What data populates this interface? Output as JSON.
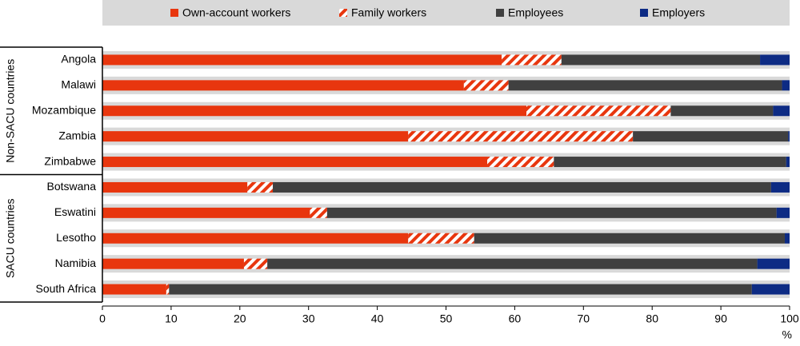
{
  "chart_data": {
    "type": "stacked-bar-horizontal",
    "groups": [
      {
        "name": "Non-SACU countries",
        "categories": [
          "Angola",
          "Malawi",
          "Mozambique",
          "Zambia",
          "Zimbabwe"
        ]
      },
      {
        "name": "SACU countries",
        "categories": [
          "Botswana",
          "Eswatini",
          "Lesotho",
          "Namibia",
          "South Africa"
        ]
      }
    ],
    "series": [
      {
        "name": "Own-account workers",
        "color": "#e8360e",
        "values": [
          58.1,
          52.6,
          61.7,
          44.5,
          56.0,
          21.1,
          30.2,
          44.5,
          20.6,
          9.3
        ]
      },
      {
        "name": "Family workers",
        "color": "#e8360e",
        "hatch": true,
        "values": [
          8.7,
          6.5,
          21.0,
          32.7,
          9.7,
          3.7,
          2.5,
          9.6,
          3.4,
          0.4
        ]
      },
      {
        "name": "Employees",
        "color": "#404040",
        "values": [
          28.9,
          39.8,
          14.9,
          22.6,
          33.8,
          72.5,
          65.4,
          45.2,
          71.3,
          84.8
        ]
      },
      {
        "name": "Employers",
        "color": "#0d2b84",
        "values": [
          4.3,
          1.1,
          2.4,
          0.2,
          0.5,
          2.7,
          1.9,
          0.7,
          4.7,
          5.5
        ]
      }
    ],
    "xlim": [
      0,
      100
    ],
    "xticks": [
      0,
      10,
      20,
      30,
      40,
      50,
      60,
      70,
      80,
      90,
      100
    ],
    "xlabel": "%"
  }
}
